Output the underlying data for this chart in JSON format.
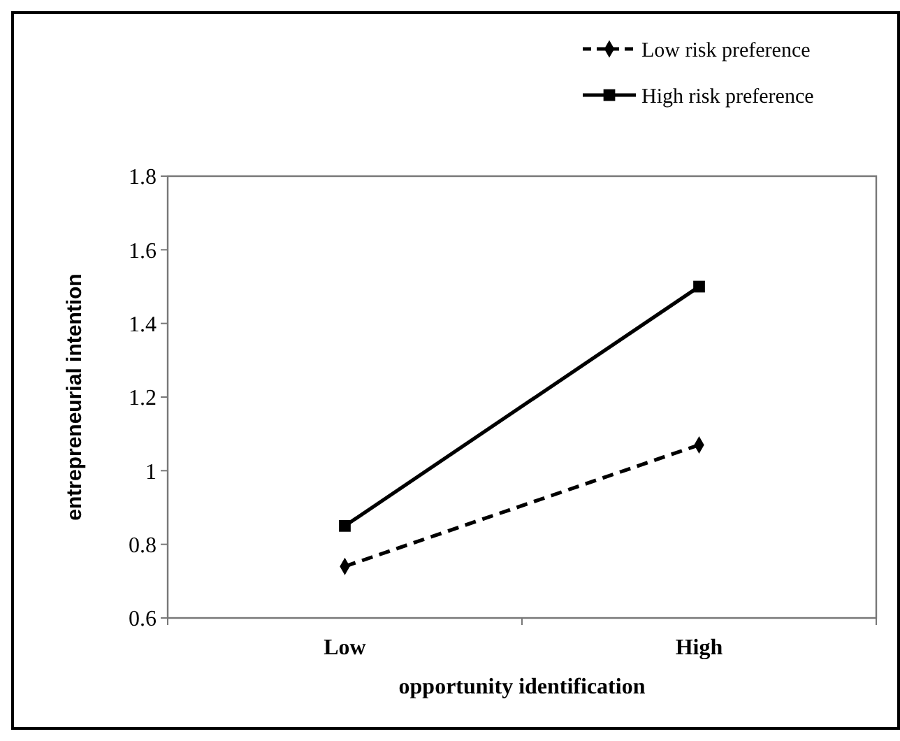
{
  "chart_data": {
    "type": "line",
    "xlabel": "opportunity identification",
    "ylabel": "entrepreneurial intention",
    "categories": [
      "Low",
      "High"
    ],
    "series": [
      {
        "name": "Low risk preference",
        "color": "#000000",
        "values": [
          0.74,
          1.07
        ],
        "marker": "diamond",
        "line_style": "dashed"
      },
      {
        "name": "High risk preference",
        "color": "#000000",
        "values": [
          0.85,
          1.5
        ],
        "marker": "square",
        "line_style": "solid"
      }
    ],
    "ylim": [
      0.6,
      1.8
    ],
    "yticks": [
      0.6,
      0.8,
      1,
      1.2,
      1.4,
      1.6,
      1.8
    ],
    "grid": false,
    "legend": "top right"
  }
}
